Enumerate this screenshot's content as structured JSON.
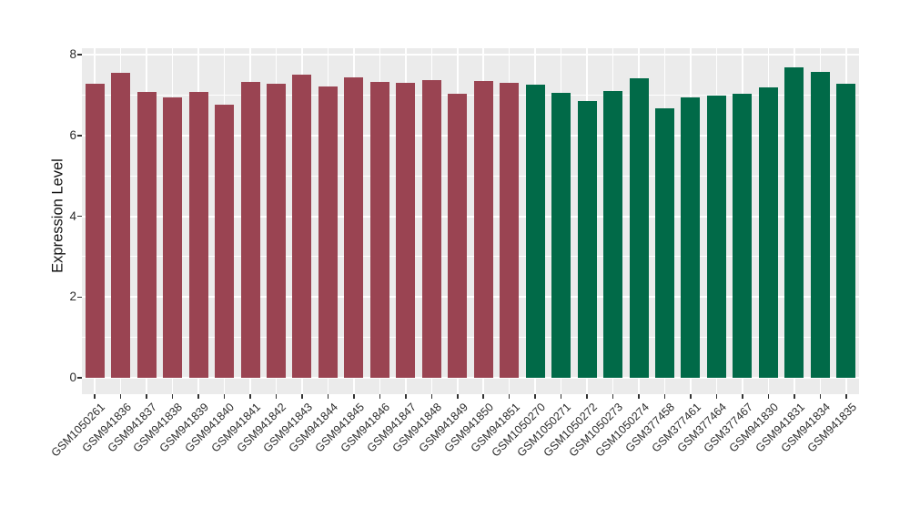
{
  "chart_data": {
    "type": "bar",
    "title": "",
    "xlabel": "",
    "ylabel": "Expression Level",
    "ylim": [
      0,
      8
    ],
    "yticks": [
      "0",
      "2",
      "4",
      "6",
      "8"
    ],
    "grid": "horizontal major every 2 and minor every 1, plus vertical line per category; white gridlines on gray panel",
    "legend_position": "none",
    "categories": [
      "GSM1050261",
      "GSM941836",
      "GSM941837",
      "GSM941838",
      "GSM941839",
      "GSM941840",
      "GSM941841",
      "GSM941842",
      "GSM941843",
      "GSM941844",
      "GSM941845",
      "GSM941846",
      "GSM941847",
      "GSM941848",
      "GSM941849",
      "GSM941850",
      "GSM941851",
      "GSM1050270",
      "GSM1050271",
      "GSM1050272",
      "GSM1050273",
      "GSM1050274",
      "GSM377458",
      "GSM377461",
      "GSM377464",
      "GSM377467",
      "GSM941830",
      "GSM941831",
      "GSM941834",
      "GSM941835"
    ],
    "values": [
      7.28,
      7.55,
      7.08,
      6.94,
      7.07,
      6.77,
      7.33,
      7.29,
      7.51,
      7.22,
      7.43,
      7.32,
      7.3,
      7.36,
      7.03,
      7.34,
      7.3,
      7.25,
      7.05,
      6.85,
      7.09,
      7.42,
      6.67,
      6.94,
      6.98,
      7.04,
      7.19,
      7.68,
      7.57,
      7.27
    ],
    "bar_colors": [
      "#9A4452",
      "#9A4452",
      "#9A4452",
      "#9A4452",
      "#9A4452",
      "#9A4452",
      "#9A4452",
      "#9A4452",
      "#9A4452",
      "#9A4452",
      "#9A4452",
      "#9A4452",
      "#9A4452",
      "#9A4452",
      "#9A4452",
      "#9A4452",
      "#9A4452",
      "#016A48",
      "#016A48",
      "#016A48",
      "#016A48",
      "#016A48",
      "#016A48",
      "#016A48",
      "#016A48",
      "#016A48",
      "#016A48",
      "#016A48",
      "#016A48",
      "#016A48"
    ],
    "palette": {
      "maroon": "#9A4452",
      "green": "#016A48"
    },
    "panel_bg": "#EBEBEB",
    "gridline_color": "#FFFFFF",
    "tick_color": "#333333"
  }
}
